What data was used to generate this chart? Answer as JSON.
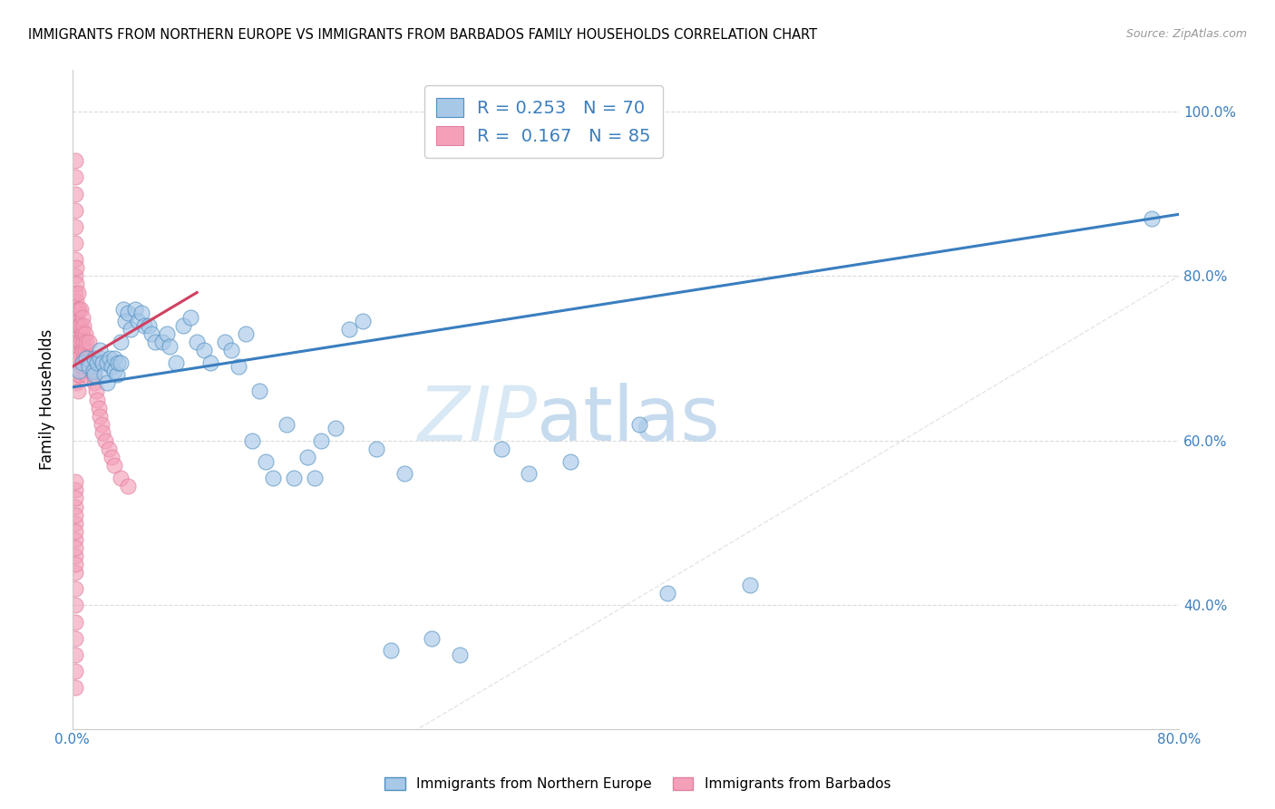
{
  "title": "IMMIGRANTS FROM NORTHERN EUROPE VS IMMIGRANTS FROM BARBADOS FAMILY HOUSEHOLDS CORRELATION CHART",
  "source": "Source: ZipAtlas.com",
  "ylabel": "Family Households",
  "xlim": [
    0.0,
    0.8
  ],
  "ylim": [
    0.25,
    1.05
  ],
  "r_blue": 0.253,
  "n_blue": 70,
  "r_pink": 0.167,
  "n_pink": 85,
  "color_blue": "#a8c8e8",
  "color_pink": "#f4a0b8",
  "color_blue_line": "#3a7ebf",
  "color_pink_line": "#d04060",
  "color_diagonal": "#cccccc",
  "legend_label_blue": "Immigrants from Northern Europe",
  "legend_label_pink": "Immigrants from Barbados",
  "blue_line_x0": 0.0,
  "blue_line_y0": 0.665,
  "blue_line_x1": 0.8,
  "blue_line_y1": 0.875,
  "pink_line_x0": 0.0,
  "pink_line_y0": 0.69,
  "pink_line_x1": 0.09,
  "pink_line_y1": 0.78,
  "blue_x": [
    0.005,
    0.007,
    0.01,
    0.012,
    0.015,
    0.016,
    0.016,
    0.018,
    0.02,
    0.02,
    0.022,
    0.023,
    0.025,
    0.025,
    0.027,
    0.028,
    0.03,
    0.03,
    0.032,
    0.033,
    0.035,
    0.035,
    0.037,
    0.038,
    0.04,
    0.042,
    0.045,
    0.047,
    0.05,
    0.052,
    0.055,
    0.057,
    0.06,
    0.065,
    0.068,
    0.07,
    0.075,
    0.08,
    0.085,
    0.09,
    0.095,
    0.1,
    0.11,
    0.115,
    0.12,
    0.125,
    0.13,
    0.135,
    0.14,
    0.145,
    0.155,
    0.16,
    0.17,
    0.175,
    0.18,
    0.19,
    0.2,
    0.21,
    0.22,
    0.23,
    0.24,
    0.26,
    0.28,
    0.31,
    0.33,
    0.36,
    0.41,
    0.43,
    0.49,
    0.78
  ],
  "blue_y": [
    0.685,
    0.695,
    0.7,
    0.69,
    0.685,
    0.7,
    0.68,
    0.695,
    0.7,
    0.71,
    0.695,
    0.68,
    0.695,
    0.67,
    0.7,
    0.69,
    0.7,
    0.685,
    0.68,
    0.695,
    0.72,
    0.695,
    0.76,
    0.745,
    0.755,
    0.735,
    0.76,
    0.745,
    0.755,
    0.74,
    0.74,
    0.73,
    0.72,
    0.72,
    0.73,
    0.715,
    0.695,
    0.74,
    0.75,
    0.72,
    0.71,
    0.695,
    0.72,
    0.71,
    0.69,
    0.73,
    0.6,
    0.66,
    0.575,
    0.555,
    0.62,
    0.555,
    0.58,
    0.555,
    0.6,
    0.615,
    0.735,
    0.745,
    0.59,
    0.345,
    0.56,
    0.36,
    0.34,
    0.59,
    0.56,
    0.575,
    0.62,
    0.415,
    0.425,
    0.87
  ],
  "pink_x": [
    0.002,
    0.002,
    0.002,
    0.002,
    0.002,
    0.002,
    0.002,
    0.002,
    0.002,
    0.002,
    0.002,
    0.002,
    0.002,
    0.003,
    0.003,
    0.003,
    0.003,
    0.003,
    0.003,
    0.003,
    0.003,
    0.004,
    0.004,
    0.004,
    0.004,
    0.004,
    0.004,
    0.004,
    0.005,
    0.005,
    0.005,
    0.005,
    0.005,
    0.006,
    0.006,
    0.006,
    0.007,
    0.007,
    0.007,
    0.007,
    0.008,
    0.008,
    0.008,
    0.009,
    0.009,
    0.01,
    0.01,
    0.01,
    0.012,
    0.012,
    0.013,
    0.015,
    0.015,
    0.016,
    0.017,
    0.018,
    0.019,
    0.02,
    0.021,
    0.022,
    0.024,
    0.026,
    0.028,
    0.03,
    0.035,
    0.04,
    0.002,
    0.002,
    0.002,
    0.002,
    0.002,
    0.002,
    0.002,
    0.002,
    0.002,
    0.002,
    0.002,
    0.002,
    0.002,
    0.002,
    0.002,
    0.002,
    0.002,
    0.002,
    0.002
  ],
  "pink_y": [
    0.94,
    0.92,
    0.9,
    0.88,
    0.86,
    0.84,
    0.82,
    0.8,
    0.78,
    0.76,
    0.74,
    0.72,
    0.7,
    0.81,
    0.79,
    0.77,
    0.75,
    0.73,
    0.71,
    0.69,
    0.67,
    0.78,
    0.76,
    0.74,
    0.72,
    0.7,
    0.68,
    0.66,
    0.76,
    0.74,
    0.72,
    0.7,
    0.68,
    0.76,
    0.74,
    0.72,
    0.75,
    0.73,
    0.71,
    0.69,
    0.74,
    0.72,
    0.7,
    0.73,
    0.71,
    0.72,
    0.7,
    0.68,
    0.72,
    0.7,
    0.69,
    0.7,
    0.68,
    0.67,
    0.66,
    0.65,
    0.64,
    0.63,
    0.62,
    0.61,
    0.6,
    0.59,
    0.58,
    0.57,
    0.555,
    0.545,
    0.54,
    0.52,
    0.5,
    0.48,
    0.46,
    0.44,
    0.42,
    0.4,
    0.38,
    0.36,
    0.34,
    0.32,
    0.3,
    0.55,
    0.53,
    0.51,
    0.49,
    0.47,
    0.45
  ]
}
